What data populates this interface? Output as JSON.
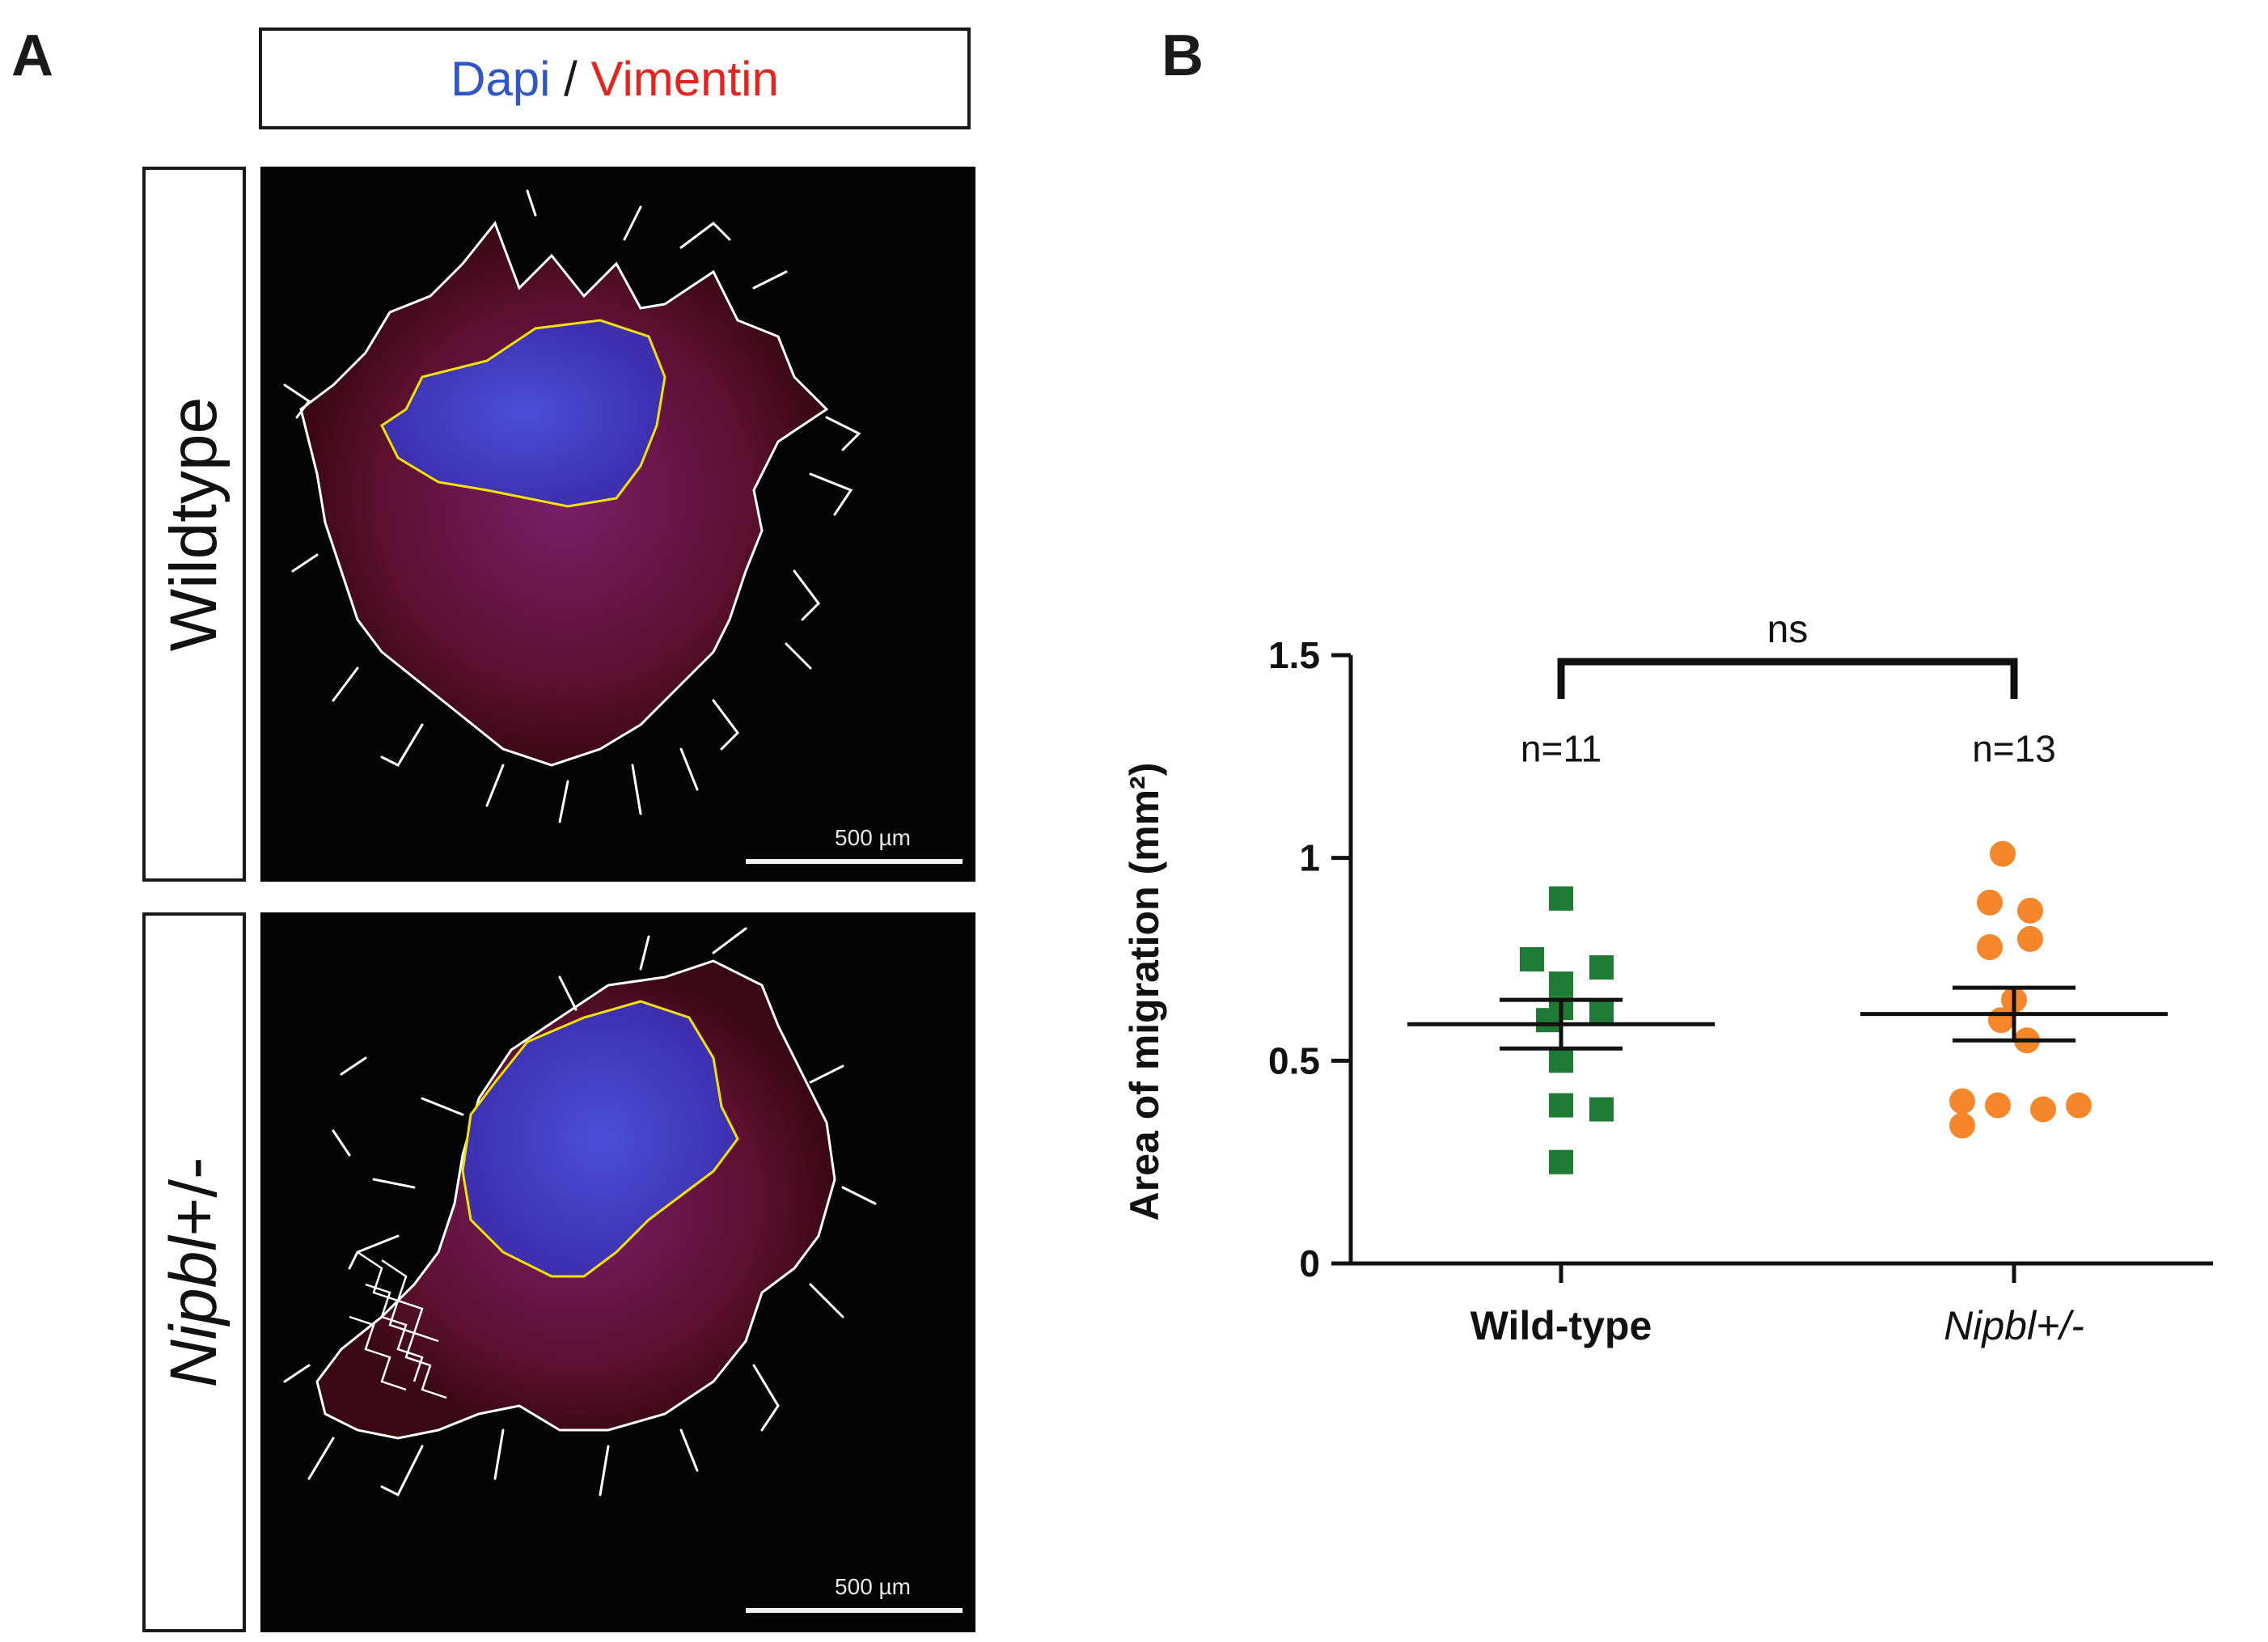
{
  "panel_a": {
    "letter": "A",
    "legend": {
      "dapi": "Dapi",
      "separator": " / ",
      "vimentin": "Vimentin"
    },
    "rows": [
      {
        "label": "Wildtype",
        "scale_bar": "500 µm"
      },
      {
        "label_italic": "Nipbl",
        "label_rest": "+/-",
        "scale_bar": "500 µm"
      }
    ],
    "colors": {
      "dapi": "#2f55c8",
      "vimentin": "#e8231d"
    }
  },
  "chart_data": {
    "letter": "B",
    "type": "scatter",
    "title": "",
    "xlabel": "",
    "ylabel": "Area of migration (mm²)",
    "ylim": [
      0,
      1.5
    ],
    "yticks": [
      {
        "value": 0,
        "label": "0"
      },
      {
        "value": 0.5,
        "label": "0.5"
      },
      {
        "value": 1,
        "label": "1"
      },
      {
        "value": 1.5,
        "label": "1.5"
      }
    ],
    "categories": [
      "Wild-type",
      "Nipbl+/-"
    ],
    "series": [
      {
        "name": "Wild-type",
        "marker": "square",
        "color": "#1e7a34",
        "n_label": "n=11",
        "mean": 0.59,
        "sem": [
          0.53,
          0.65
        ],
        "points": [
          {
            "dx": 0,
            "y": 0.9
          },
          {
            "dx": -0.18,
            "y": 0.75
          },
          {
            "dx": 0.25,
            "y": 0.73
          },
          {
            "dx": 0,
            "y": 0.69
          },
          {
            "dx": 0,
            "y": 0.63
          },
          {
            "dx": 0.25,
            "y": 0.62
          },
          {
            "dx": -0.08,
            "y": 0.6
          },
          {
            "dx": 0,
            "y": 0.5
          },
          {
            "dx": 0,
            "y": 0.39
          },
          {
            "dx": 0.25,
            "y": 0.38
          },
          {
            "dx": 0,
            "y": 0.25
          }
        ]
      },
      {
        "name": "Nipbl+/-",
        "marker": "circle",
        "color": "#f5862a",
        "n_label": "n=13",
        "mean": 0.615,
        "sem": [
          0.55,
          0.68
        ],
        "points": [
          {
            "dx": -0.07,
            "y": 1.01
          },
          {
            "dx": -0.15,
            "y": 0.89
          },
          {
            "dx": 0.1,
            "y": 0.87
          },
          {
            "dx": -0.15,
            "y": 0.78
          },
          {
            "dx": 0.1,
            "y": 0.8
          },
          {
            "dx": 0,
            "y": 0.65
          },
          {
            "dx": -0.08,
            "y": 0.6
          },
          {
            "dx": 0.08,
            "y": 0.55
          },
          {
            "dx": -0.32,
            "y": 0.4
          },
          {
            "dx": -0.1,
            "y": 0.39
          },
          {
            "dx": 0.18,
            "y": 0.38
          },
          {
            "dx": 0.4,
            "y": 0.39
          },
          {
            "dx": -0.32,
            "y": 0.34
          }
        ]
      }
    ],
    "annotations": [
      {
        "text": "ns",
        "between": [
          "Wild-type",
          "Nipbl+/-"
        ]
      }
    ],
    "grid": false,
    "legend": "none"
  }
}
